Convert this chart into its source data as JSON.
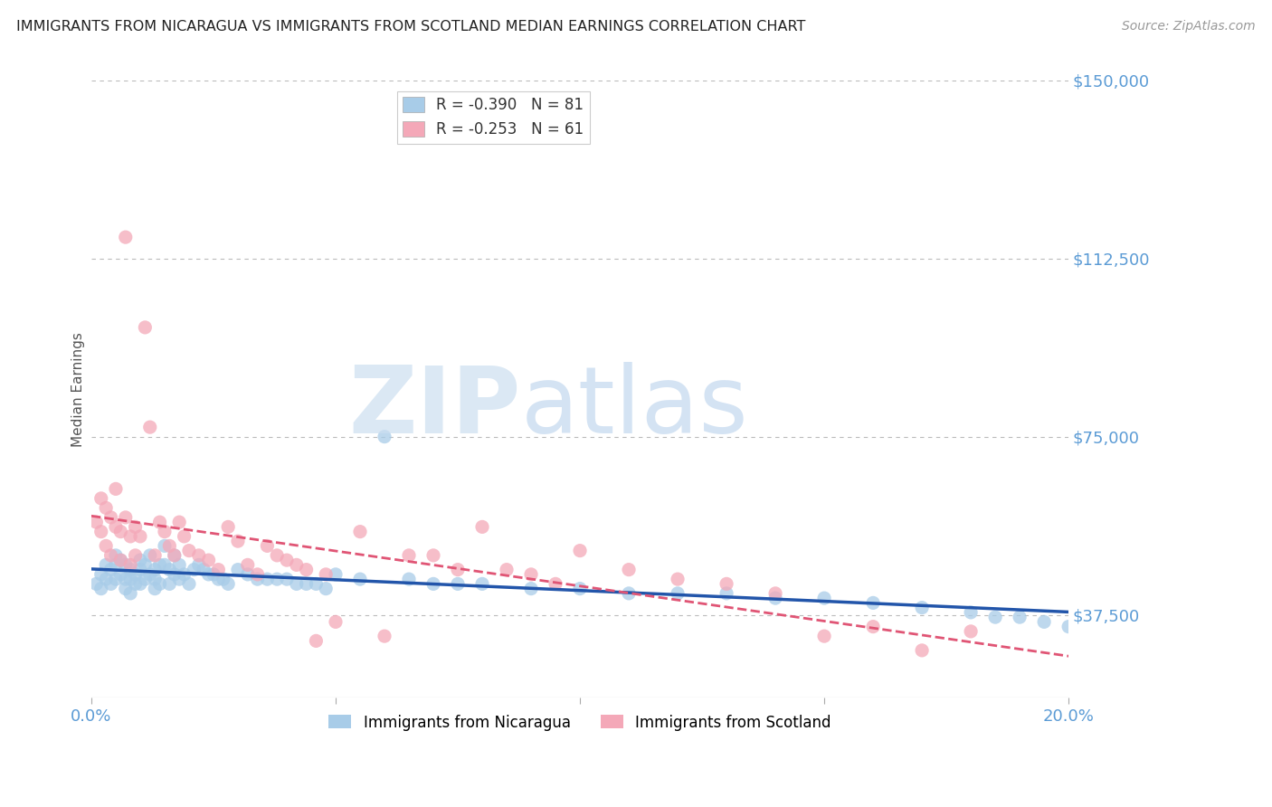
{
  "title": "IMMIGRANTS FROM NICARAGUA VS IMMIGRANTS FROM SCOTLAND MEDIAN EARNINGS CORRELATION CHART",
  "source": "Source: ZipAtlas.com",
  "ylabel": "Median Earnings",
  "xlim": [
    0.0,
    0.2
  ],
  "ylim": [
    20000,
    150000
  ],
  "yticks": [
    37500,
    75000,
    112500,
    150000
  ],
  "ytick_labels": [
    "$37,500",
    "$75,000",
    "$112,500",
    "$150,000"
  ],
  "xticks": [
    0.0,
    0.05,
    0.1,
    0.15,
    0.2
  ],
  "xtick_labels": [
    "0.0%",
    "",
    "",
    "",
    "20.0%"
  ],
  "nicaragua_color": "#a8cce8",
  "scotland_color": "#f4a8b8",
  "nicaragua_R": -0.39,
  "nicaragua_N": 81,
  "scotland_R": -0.253,
  "scotland_N": 61,
  "legend_label_nicaragua": "Immigrants from Nicaragua",
  "legend_label_scotland": "Immigrants from Scotland",
  "axis_color": "#5b9bd5",
  "grid_color": "#bbbbbb",
  "nicaragua_line_color": "#2255aa",
  "scotland_line_color": "#e05575",
  "nicaragua_x": [
    0.001,
    0.002,
    0.002,
    0.003,
    0.003,
    0.004,
    0.004,
    0.005,
    0.005,
    0.005,
    0.006,
    0.006,
    0.007,
    0.007,
    0.007,
    0.008,
    0.008,
    0.008,
    0.009,
    0.009,
    0.01,
    0.01,
    0.01,
    0.011,
    0.011,
    0.012,
    0.012,
    0.013,
    0.013,
    0.013,
    0.014,
    0.014,
    0.015,
    0.015,
    0.016,
    0.016,
    0.017,
    0.017,
    0.018,
    0.018,
    0.019,
    0.02,
    0.021,
    0.022,
    0.023,
    0.024,
    0.025,
    0.026,
    0.027,
    0.028,
    0.03,
    0.032,
    0.034,
    0.036,
    0.038,
    0.04,
    0.042,
    0.044,
    0.046,
    0.048,
    0.05,
    0.055,
    0.06,
    0.065,
    0.07,
    0.075,
    0.08,
    0.09,
    0.1,
    0.11,
    0.12,
    0.13,
    0.14,
    0.15,
    0.16,
    0.17,
    0.18,
    0.185,
    0.19,
    0.195,
    0.2
  ],
  "nicaragua_y": [
    44000,
    46000,
    43000,
    48000,
    45000,
    47000,
    44000,
    50000,
    48000,
    45000,
    49000,
    46000,
    48000,
    45000,
    43000,
    47000,
    45000,
    42000,
    46000,
    44000,
    49000,
    47000,
    44000,
    48000,
    45000,
    50000,
    46000,
    47000,
    45000,
    43000,
    48000,
    44000,
    52000,
    48000,
    47000,
    44000,
    50000,
    46000,
    48000,
    45000,
    46000,
    44000,
    47000,
    48000,
    47000,
    46000,
    46000,
    45000,
    45000,
    44000,
    47000,
    46000,
    45000,
    45000,
    45000,
    45000,
    44000,
    44000,
    44000,
    43000,
    46000,
    45000,
    75000,
    45000,
    44000,
    44000,
    44000,
    43000,
    43000,
    42000,
    42000,
    42000,
    41000,
    41000,
    40000,
    39000,
    38000,
    37000,
    37000,
    36000,
    35000
  ],
  "scotland_x": [
    0.001,
    0.002,
    0.002,
    0.003,
    0.003,
    0.004,
    0.004,
    0.005,
    0.005,
    0.006,
    0.006,
    0.007,
    0.007,
    0.008,
    0.008,
    0.009,
    0.009,
    0.01,
    0.011,
    0.012,
    0.013,
    0.014,
    0.015,
    0.016,
    0.017,
    0.018,
    0.019,
    0.02,
    0.022,
    0.024,
    0.026,
    0.028,
    0.03,
    0.032,
    0.034,
    0.036,
    0.038,
    0.04,
    0.042,
    0.044,
    0.046,
    0.048,
    0.05,
    0.055,
    0.06,
    0.065,
    0.07,
    0.075,
    0.08,
    0.085,
    0.09,
    0.095,
    0.1,
    0.11,
    0.12,
    0.13,
    0.14,
    0.15,
    0.16,
    0.17,
    0.18
  ],
  "scotland_y": [
    57000,
    62000,
    55000,
    60000,
    52000,
    58000,
    50000,
    64000,
    56000,
    55000,
    49000,
    117000,
    58000,
    54000,
    48000,
    56000,
    50000,
    54000,
    98000,
    77000,
    50000,
    57000,
    55000,
    52000,
    50000,
    57000,
    54000,
    51000,
    50000,
    49000,
    47000,
    56000,
    53000,
    48000,
    46000,
    52000,
    50000,
    49000,
    48000,
    47000,
    32000,
    46000,
    36000,
    55000,
    33000,
    50000,
    50000,
    47000,
    56000,
    47000,
    46000,
    44000,
    51000,
    47000,
    45000,
    44000,
    42000,
    33000,
    35000,
    30000,
    34000
  ]
}
